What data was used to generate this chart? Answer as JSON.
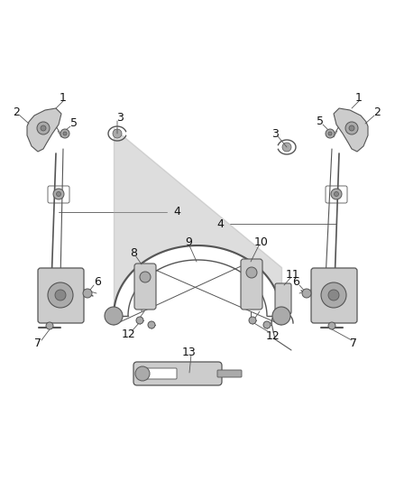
{
  "bg_color": "#ffffff",
  "fig_width": 4.38,
  "fig_height": 5.33,
  "dpi": 100,
  "lc": "#555555",
  "fc_dark": "#888888",
  "fc_mid": "#aaaaaa",
  "fc_light": "#cccccc",
  "fs": 9
}
